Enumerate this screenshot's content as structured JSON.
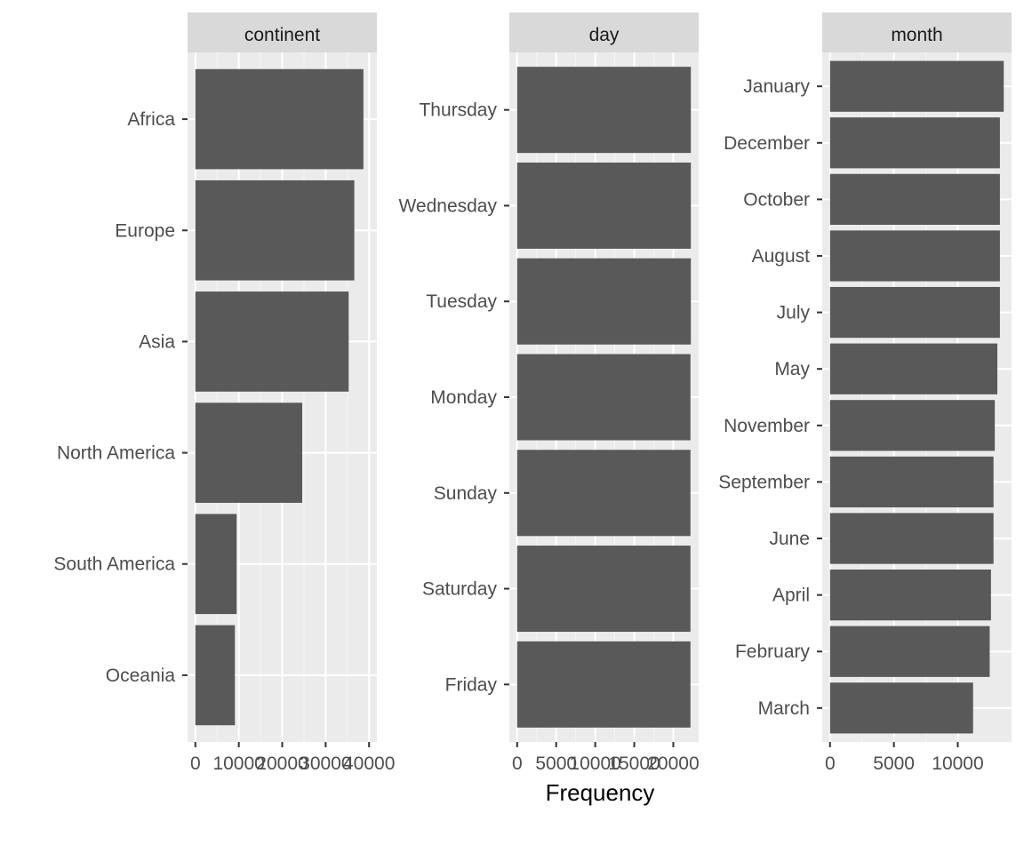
{
  "colors": {
    "panel_background": "#ebebeb",
    "strip_background": "#d9d9d9",
    "grid_major": "#ffffff",
    "bar_fill": "#595959",
    "tick_label": "#4d4d4d",
    "axis_title": "#000000"
  },
  "chart_data": {
    "type": "bar",
    "orientation": "horizontal",
    "grid": true,
    "xlabel": "Frequency",
    "panels": [
      {
        "strip": "continent",
        "categories": [
          "Africa",
          "Europe",
          "Asia",
          "North America",
          "South America",
          "Oceania"
        ],
        "values": [
          38700,
          36600,
          35300,
          24600,
          9500,
          9100
        ],
        "xlim": [
          0,
          40000
        ],
        "ticks": [
          0,
          10000,
          20000,
          30000,
          40000
        ],
        "tick_labels": [
          "0",
          "10000",
          "20000",
          "30000",
          "40000"
        ]
      },
      {
        "strip": "day",
        "categories": [
          "Thursday",
          "Wednesday",
          "Tuesday",
          "Monday",
          "Sunday",
          "Saturday",
          "Friday"
        ],
        "values": [
          22250,
          22250,
          22250,
          22200,
          22200,
          22200,
          22200
        ],
        "xlim": [
          0,
          22250
        ],
        "ticks": [
          0,
          5000,
          10000,
          15000,
          20000
        ],
        "tick_labels": [
          "0",
          "5000",
          "10000",
          "15000",
          "20000"
        ]
      },
      {
        "strip": "month",
        "categories": [
          "January",
          "December",
          "October",
          "August",
          "July",
          "May",
          "November",
          "September",
          "June",
          "April",
          "February",
          "March"
        ],
        "values": [
          13600,
          13300,
          13300,
          13300,
          13300,
          13100,
          12900,
          12800,
          12800,
          12600,
          12500,
          11200
        ],
        "xlim": [
          0,
          13600
        ],
        "ticks": [
          0,
          5000,
          10000
        ],
        "tick_labels": [
          "0",
          "5000",
          "10000"
        ]
      }
    ]
  }
}
